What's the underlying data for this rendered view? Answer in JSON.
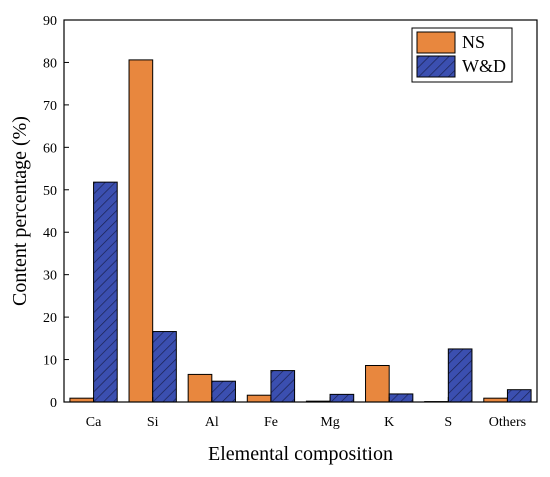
{
  "chart_data": {
    "type": "bar",
    "title": "",
    "xlabel": "Elemental composition",
    "ylabel": "Content percentage (%)",
    "ylim": [
      0,
      90
    ],
    "yticks": [
      0,
      10,
      20,
      30,
      40,
      50,
      60,
      70,
      80,
      90
    ],
    "categories": [
      "Ca",
      "Si",
      "Al",
      "Fe",
      "Mg",
      "K",
      "S",
      "Others"
    ],
    "series": [
      {
        "name": "NS",
        "color": "#E8873E",
        "pattern": "solid",
        "values": [
          0.9,
          80.6,
          6.5,
          1.6,
          0.2,
          8.6,
          0.1,
          0.9
        ]
      },
      {
        "name": "W&D",
        "color": "#3B4FB0",
        "pattern": "diagonal-hatch",
        "values": [
          51.8,
          16.6,
          4.9,
          7.4,
          1.8,
          1.9,
          12.5,
          2.9
        ]
      }
    ],
    "legend_position": "top-right",
    "grid": false
  }
}
